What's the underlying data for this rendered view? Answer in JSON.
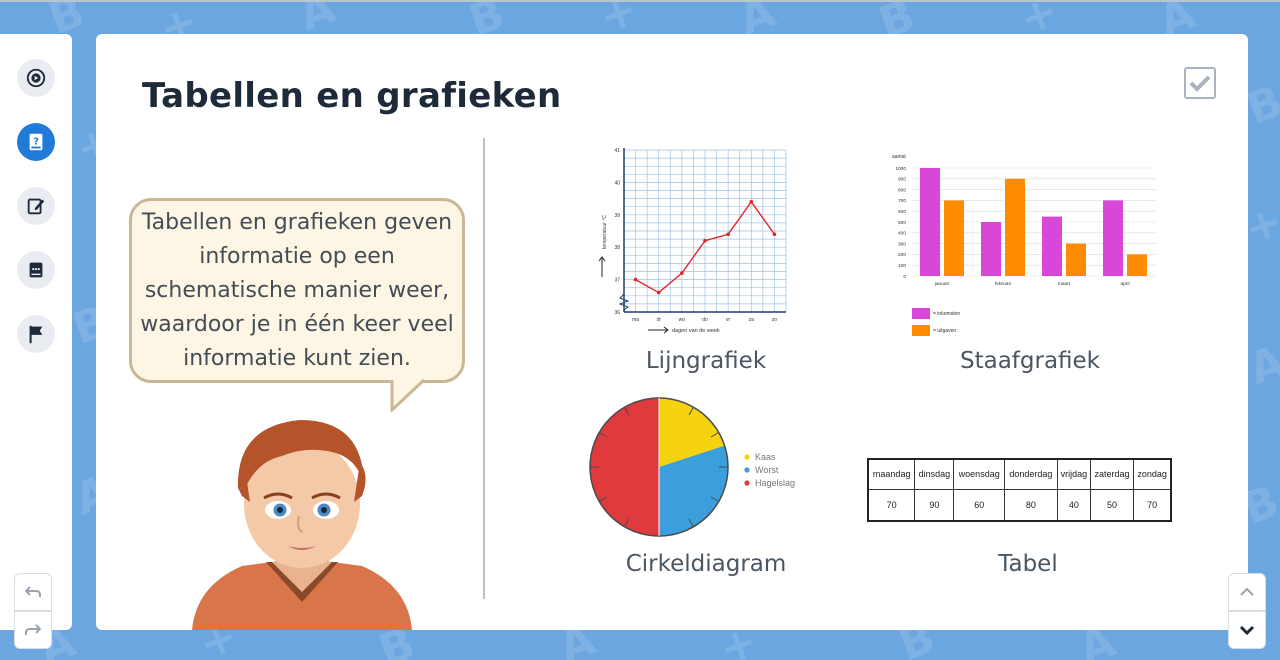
{
  "page": {
    "title": "Tabellen en grafieken",
    "bubble_text": "Tabellen en grafieken geven informatie op een schematische manier weer, waardoor je in één keer veel informatie kunt zien."
  },
  "sidebar": {
    "items": [
      {
        "icon": "play-circle-icon",
        "active": false
      },
      {
        "icon": "book-question-icon",
        "active": true
      },
      {
        "icon": "edit-icon",
        "active": false
      },
      {
        "icon": "chat-book-icon",
        "active": false
      },
      {
        "icon": "flag-icon",
        "active": false
      }
    ]
  },
  "graphs": {
    "line": {
      "label": "Lijngrafiek",
      "ylabel": "temperatuur °C",
      "xlabel": "dagen van de week",
      "y_ticks": [
        "41",
        "40",
        "39",
        "38",
        "37",
        "36"
      ],
      "x_ticks": [
        "ma",
        "di",
        "wo",
        "do",
        "vr",
        "za",
        "zo"
      ]
    },
    "bar": {
      "label": "Staafgrafiek",
      "ylabel": "aantal",
      "y_ticks": [
        "1000",
        "900",
        "800",
        "700",
        "600",
        "500",
        "400",
        "300",
        "200",
        "100",
        "0"
      ],
      "categories": [
        "januari",
        "februari",
        "maart",
        "april"
      ],
      "legend": [
        "= inkomsten",
        "= uitgaven"
      ]
    },
    "pie": {
      "label": "Cirkeldiagram",
      "legend": [
        "Kaas",
        "Worst",
        "Hagelslag"
      ]
    },
    "table": {
      "label": "Tabel",
      "headers": [
        "maandag",
        "dinsdag",
        "woensdag",
        "donderdag",
        "vrijdag",
        "zaterdag",
        "zondag"
      ],
      "values": [
        "70",
        "90",
        "60",
        "80",
        "40",
        "50",
        "70"
      ]
    }
  },
  "chart_data": [
    {
      "type": "line",
      "title": "",
      "xlabel": "dagen van de week",
      "ylabel": "temperatuur °C",
      "x": [
        "ma",
        "di",
        "wo",
        "do",
        "vr",
        "za",
        "zo"
      ],
      "values": [
        37.0,
        36.6,
        37.2,
        38.2,
        38.4,
        39.4,
        38.4
      ],
      "ylim": [
        36,
        41
      ],
      "grid": true,
      "color": "#e0262b"
    },
    {
      "type": "bar",
      "title": "",
      "ylabel": "aantal",
      "categories": [
        "januari",
        "februari",
        "maart",
        "april"
      ],
      "series": [
        {
          "name": "= inkomsten",
          "values": [
            1000,
            500,
            550,
            700
          ],
          "color": "#d947d9"
        },
        {
          "name": "= uitgaven",
          "values": [
            700,
            900,
            300,
            200
          ],
          "color": "#ff8c00"
        }
      ],
      "ylim": [
        0,
        1000
      ],
      "grid": true,
      "legend": "bottom-left"
    },
    {
      "type": "pie",
      "title": "",
      "slices": [
        {
          "name": "Kaas",
          "value": 20,
          "color": "#f5d30e"
        },
        {
          "name": "Worst",
          "value": 30,
          "color": "#3a9fdc"
        },
        {
          "name": "Hagelslag",
          "value": 50,
          "color": "#e0393e"
        }
      ],
      "legend": "right"
    }
  ]
}
